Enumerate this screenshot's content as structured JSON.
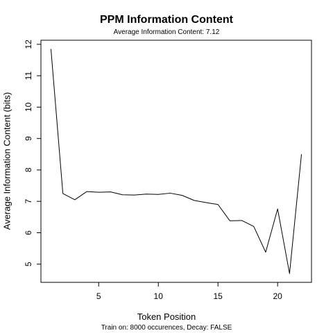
{
  "chart_data": {
    "type": "line",
    "title": "PPM Information Content",
    "subtitle": "Average Information Content: 7.12",
    "xlabel": "Token Position",
    "ylabel": "Average Information Content (bits)",
    "caption": "Train on: 8000 occurences, Decay: FALSE",
    "x": [
      1,
      2,
      3,
      4,
      5,
      6,
      7,
      8,
      9,
      10,
      11,
      12,
      13,
      14,
      15,
      16,
      17,
      18,
      19,
      20,
      21,
      22
    ],
    "y": [
      11.85,
      7.25,
      7.05,
      7.31,
      7.29,
      7.3,
      7.21,
      7.2,
      7.23,
      7.22,
      7.26,
      7.19,
      7.03,
      6.96,
      6.9,
      6.38,
      6.39,
      6.2,
      5.38,
      6.76,
      4.7,
      8.5
    ],
    "xlim": [
      0.16,
      22.84
    ],
    "ylim": [
      4.42,
      12.13
    ],
    "xticks": [
      5,
      10,
      15,
      20
    ],
    "yticks": [
      5,
      6,
      7,
      8,
      9,
      10,
      11,
      12
    ],
    "grid": false,
    "line_color": "#000000"
  }
}
